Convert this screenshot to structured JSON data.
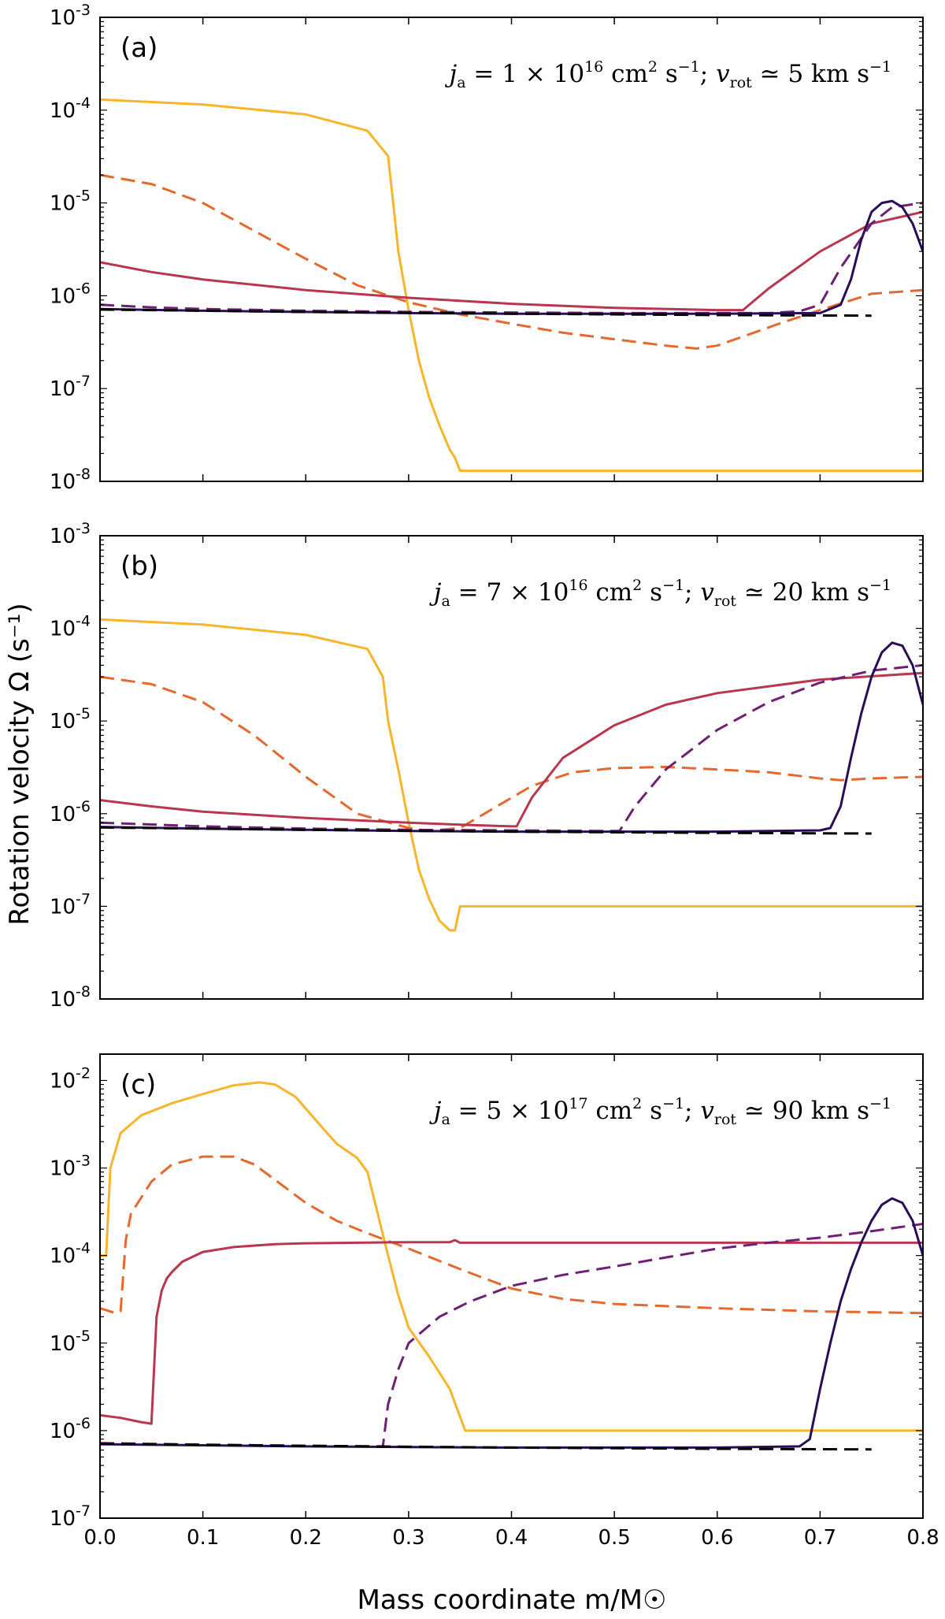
{
  "figure": {
    "ylabel": "Rotation velocity Ω (s⁻¹)",
    "xlabel": "Mass coordinate m/M☉"
  },
  "chart_data": [
    {
      "type": "line",
      "panel_label": "(a)",
      "annotation": "j_a = 1 × 10^16 cm^2 s^-1; v_rot ≃ 5 km s^-1",
      "annotation_parts": {
        "j": "1",
        "exp": "16",
        "v": "5"
      },
      "xlim": [
        0,
        0.8
      ],
      "ylim": [
        1e-08,
        0.001
      ],
      "yscale": "log",
      "x_ticks": [
        "0.0",
        "0.1",
        "0.2",
        "0.3",
        "0.4",
        "0.5",
        "0.6",
        "0.7",
        "0.8"
      ],
      "y_ticks": [
        {
          "base": "10",
          "exp": "-8"
        },
        {
          "base": "10",
          "exp": "-7"
        },
        {
          "base": "10",
          "exp": "-6"
        },
        {
          "base": "10",
          "exp": "-5"
        },
        {
          "base": "10",
          "exp": "-4"
        },
        {
          "base": "10",
          "exp": "-3"
        }
      ],
      "series": [
        {
          "color": "#f7b52c",
          "dash": "solid",
          "x": [
            0,
            0.1,
            0.2,
            0.26,
            0.28,
            0.285,
            0.29,
            0.3,
            0.31,
            0.32,
            0.33,
            0.34,
            0.345,
            0.35,
            0.8
          ],
          "y": [
            0.00013,
            0.000115,
            9e-05,
            6e-05,
            3.2e-05,
            1e-05,
            3e-06,
            7e-07,
            2e-07,
            8e-08,
            4e-08,
            2.2e-08,
            1.8e-08,
            1.3e-08,
            1.3e-08
          ]
        },
        {
          "color": "#e3692f",
          "dash": "dashed",
          "x": [
            0,
            0.05,
            0.1,
            0.15,
            0.2,
            0.25,
            0.3,
            0.35,
            0.4,
            0.45,
            0.5,
            0.55,
            0.58,
            0.6,
            0.63,
            0.66,
            0.7,
            0.75,
            0.8
          ],
          "y": [
            2e-05,
            1.6e-05,
            1e-05,
            5e-06,
            2.5e-06,
            1.3e-06,
            8.5e-07,
            6.3e-07,
            5e-07,
            4e-07,
            3.4e-07,
            2.9e-07,
            2.7e-07,
            2.9e-07,
            3.8e-07,
            5e-07,
            7e-07,
            1.05e-06,
            1.15e-06
          ]
        },
        {
          "color": "#b8364f",
          "dash": "solid",
          "x": [
            0,
            0.05,
            0.1,
            0.2,
            0.3,
            0.4,
            0.5,
            0.6,
            0.625,
            0.65,
            0.7,
            0.75,
            0.8
          ],
          "y": [
            2.3e-06,
            1.8e-06,
            1.5e-06,
            1.15e-06,
            9.5e-07,
            8.2e-07,
            7.4e-07,
            7e-07,
            7e-07,
            1.2e-06,
            3e-06,
            6e-06,
            8e-06
          ]
        },
        {
          "color": "#6e2174",
          "dash": "dashed",
          "x": [
            0,
            0.05,
            0.1,
            0.2,
            0.3,
            0.5,
            0.65,
            0.68,
            0.7,
            0.72,
            0.75,
            0.77,
            0.8
          ],
          "y": [
            8e-07,
            7.5e-07,
            7.2e-07,
            6.9e-07,
            6.7e-07,
            6.5e-07,
            6.5e-07,
            6.8e-07,
            8e-07,
            2e-06,
            6e-06,
            9e-06,
            1e-05
          ]
        },
        {
          "color": "#2a0d58",
          "dash": "solid",
          "x": [
            0,
            0.1,
            0.2,
            0.3,
            0.4,
            0.5,
            0.6,
            0.7,
            0.72,
            0.73,
            0.74,
            0.75,
            0.76,
            0.77,
            0.78,
            0.79,
            0.8
          ],
          "y": [
            7.2e-07,
            6.9e-07,
            6.7e-07,
            6.5e-07,
            6.4e-07,
            6.4e-07,
            6.4e-07,
            6.5e-07,
            8e-07,
            1.5e-06,
            4e-06,
            8e-06,
            1e-05,
            1.05e-05,
            9e-06,
            6e-06,
            3e-06
          ]
        },
        {
          "color": "#000000",
          "dash": "dashed",
          "x": [
            0,
            0.2,
            0.4,
            0.6,
            0.75
          ],
          "y": [
            7.1e-07,
            6.7e-07,
            6.4e-07,
            6.2e-07,
            6.1e-07
          ]
        }
      ]
    },
    {
      "type": "line",
      "panel_label": "(b)",
      "annotation": "j_a = 7 × 10^16 cm^2 s^-1; v_rot ≃ 20 km s^-1",
      "annotation_parts": {
        "j": "7",
        "exp": "16",
        "v": "20"
      },
      "xlim": [
        0,
        0.8
      ],
      "ylim": [
        1e-08,
        0.001
      ],
      "yscale": "log",
      "x_ticks": [
        "0.0",
        "0.1",
        "0.2",
        "0.3",
        "0.4",
        "0.5",
        "0.6",
        "0.7",
        "0.8"
      ],
      "y_ticks": [
        {
          "base": "10",
          "exp": "-8"
        },
        {
          "base": "10",
          "exp": "-7"
        },
        {
          "base": "10",
          "exp": "-6"
        },
        {
          "base": "10",
          "exp": "-5"
        },
        {
          "base": "10",
          "exp": "-4"
        },
        {
          "base": "10",
          "exp": "-3"
        }
      ],
      "series": [
        {
          "color": "#f7b52c",
          "dash": "solid",
          "x": [
            0,
            0.1,
            0.2,
            0.26,
            0.275,
            0.28,
            0.29,
            0.3,
            0.31,
            0.32,
            0.33,
            0.34,
            0.345,
            0.35,
            0.8
          ],
          "y": [
            0.000125,
            0.00011,
            8.5e-05,
            6e-05,
            3e-05,
            1e-05,
            3e-06,
            8e-07,
            2.5e-07,
            1.2e-07,
            7e-08,
            5.5e-08,
            5.5e-08,
            1e-07,
            1e-07
          ]
        },
        {
          "color": "#e3692f",
          "dash": "dashed",
          "x": [
            0,
            0.05,
            0.1,
            0.15,
            0.2,
            0.25,
            0.3,
            0.32,
            0.35,
            0.38,
            0.42,
            0.46,
            0.5,
            0.55,
            0.6,
            0.65,
            0.7,
            0.72,
            0.75,
            0.8
          ],
          "y": [
            3e-05,
            2.5e-05,
            1.6e-05,
            7e-06,
            2.5e-06,
            1e-06,
            7e-07,
            6.5e-07,
            7e-07,
            1.1e-06,
            2e-06,
            2.8e-06,
            3.1e-06,
            3.2e-06,
            3e-06,
            2.8e-06,
            2.4e-06,
            2.3e-06,
            2.4e-06,
            2.5e-06
          ]
        },
        {
          "color": "#b8364f",
          "dash": "solid",
          "x": [
            0,
            0.05,
            0.1,
            0.2,
            0.3,
            0.35,
            0.4,
            0.405,
            0.42,
            0.45,
            0.5,
            0.55,
            0.6,
            0.7,
            0.8
          ],
          "y": [
            1.4e-06,
            1.2e-06,
            1.05e-06,
            9e-07,
            8e-07,
            7.6e-07,
            7.3e-07,
            7.3e-07,
            1.5e-06,
            4e-06,
            9e-06,
            1.5e-05,
            2e-05,
            2.8e-05,
            3.3e-05
          ]
        },
        {
          "color": "#6e2174",
          "dash": "dashed",
          "x": [
            0,
            0.1,
            0.2,
            0.3,
            0.4,
            0.5,
            0.505,
            0.52,
            0.55,
            0.6,
            0.65,
            0.7,
            0.75,
            0.8
          ],
          "y": [
            8e-07,
            7.3e-07,
            6.9e-07,
            6.7e-07,
            6.6e-07,
            6.5e-07,
            6.5e-07,
            1.2e-06,
            3e-06,
            8e-06,
            1.6e-05,
            2.6e-05,
            3.5e-05,
            4e-05
          ]
        },
        {
          "color": "#2a0d58",
          "dash": "solid",
          "x": [
            0,
            0.1,
            0.2,
            0.3,
            0.4,
            0.5,
            0.6,
            0.7,
            0.71,
            0.72,
            0.73,
            0.74,
            0.75,
            0.76,
            0.77,
            0.78,
            0.79,
            0.8
          ],
          "y": [
            7.2e-07,
            6.9e-07,
            6.7e-07,
            6.5e-07,
            6.4e-07,
            6.4e-07,
            6.4e-07,
            6.6e-07,
            7e-07,
            1.2e-06,
            4e-06,
            1.2e-05,
            3e-05,
            5.5e-05,
            7e-05,
            6.5e-05,
            4e-05,
            1.5e-05
          ]
        },
        {
          "color": "#000000",
          "dash": "dashed",
          "x": [
            0,
            0.2,
            0.4,
            0.6,
            0.75
          ],
          "y": [
            7.1e-07,
            6.7e-07,
            6.4e-07,
            6.2e-07,
            6.1e-07
          ]
        }
      ]
    },
    {
      "type": "line",
      "panel_label": "(c)",
      "annotation": "j_a = 5 × 10^17 cm^2 s^-1; v_rot ≃ 90 km s^-1",
      "annotation_parts": {
        "j": "5",
        "exp": "17",
        "v": "90"
      },
      "xlim": [
        0,
        0.8
      ],
      "ylim": [
        1e-07,
        0.02
      ],
      "yscale": "log",
      "x_ticks": [
        "0.0",
        "0.1",
        "0.2",
        "0.3",
        "0.4",
        "0.5",
        "0.6",
        "0.7",
        "0.8"
      ],
      "y_ticks": [
        {
          "base": "10",
          "exp": "-7"
        },
        {
          "base": "10",
          "exp": "-6"
        },
        {
          "base": "10",
          "exp": "-5"
        },
        {
          "base": "10",
          "exp": "-4"
        },
        {
          "base": "10",
          "exp": "-3"
        },
        {
          "base": "10",
          "exp": "-2"
        }
      ],
      "series": [
        {
          "color": "#f7b52c",
          "dash": "solid",
          "x": [
            0,
            0.006,
            0.01,
            0.02,
            0.04,
            0.07,
            0.1,
            0.13,
            0.155,
            0.17,
            0.19,
            0.21,
            0.23,
            0.25,
            0.26,
            0.27,
            0.28,
            0.29,
            0.3,
            0.32,
            0.34,
            0.355,
            0.8
          ],
          "y": [
            0.0001,
            0.0001,
            0.001,
            0.0025,
            0.004,
            0.0055,
            0.007,
            0.0088,
            0.0095,
            0.009,
            0.0065,
            0.0035,
            0.0019,
            0.0013,
            0.0009,
            0.0003,
            0.0001,
            3.5e-05,
            1.5e-05,
            7e-06,
            3e-06,
            1e-06,
            1e-06
          ]
        },
        {
          "color": "#e3692f",
          "dash": "dashed",
          "x": [
            0,
            0.015,
            0.02,
            0.025,
            0.03,
            0.05,
            0.07,
            0.1,
            0.13,
            0.15,
            0.18,
            0.2,
            0.23,
            0.26,
            0.3,
            0.35,
            0.4,
            0.45,
            0.5,
            0.6,
            0.7,
            0.8
          ],
          "y": [
            2.5e-05,
            2.2e-05,
            2.3e-05,
            0.00015,
            0.0003,
            0.0007,
            0.0011,
            0.00135,
            0.00135,
            0.0011,
            0.0006,
            0.0004,
            0.00025,
            0.00018,
            0.00012,
            7e-05,
            4.2e-05,
            3.2e-05,
            2.8e-05,
            2.5e-05,
            2.3e-05,
            2.2e-05
          ]
        },
        {
          "color": "#b8364f",
          "dash": "solid",
          "x": [
            0,
            0.02,
            0.04,
            0.05,
            0.055,
            0.06,
            0.065,
            0.07,
            0.08,
            0.1,
            0.13,
            0.17,
            0.2,
            0.25,
            0.3,
            0.34,
            0.345,
            0.35,
            0.4,
            0.5,
            0.6,
            0.7,
            0.8
          ],
          "y": [
            1.5e-06,
            1.4e-06,
            1.25e-06,
            1.2e-06,
            2e-05,
            4e-05,
            5.5e-05,
            6.5e-05,
            8.5e-05,
            0.00011,
            0.000125,
            0.000135,
            0.000138,
            0.00014,
            0.000142,
            0.000142,
            0.00015,
            0.00014,
            0.00014,
            0.00014,
            0.00014,
            0.00014,
            0.00014
          ]
        },
        {
          "color": "#6e2174",
          "dash": "dashed",
          "x": [
            0,
            0.1,
            0.2,
            0.27,
            0.275,
            0.28,
            0.29,
            0.3,
            0.33,
            0.36,
            0.4,
            0.45,
            0.5,
            0.55,
            0.6,
            0.65,
            0.7,
            0.75,
            0.8
          ],
          "y": [
            7.2e-07,
            6.9e-07,
            6.7e-07,
            6.6e-07,
            6.6e-07,
            2e-06,
            5e-06,
            1e-05,
            2e-05,
            3e-05,
            4.5e-05,
            6e-05,
            7.5e-05,
            9.5e-05,
            0.00012,
            0.00014,
            0.00016,
            0.00019,
            0.00023
          ]
        },
        {
          "color": "#2a0d58",
          "dash": "solid",
          "x": [
            0,
            0.1,
            0.2,
            0.3,
            0.4,
            0.5,
            0.6,
            0.68,
            0.69,
            0.7,
            0.71,
            0.72,
            0.73,
            0.74,
            0.75,
            0.76,
            0.77,
            0.78,
            0.79,
            0.8
          ],
          "y": [
            7e-07,
            6.8e-07,
            6.6e-07,
            6.5e-07,
            6.4e-07,
            6.4e-07,
            6.4e-07,
            6.6e-07,
            8e-07,
            3e-06,
            1e-05,
            3e-05,
            7e-05,
            0.00014,
            0.00025,
            0.00038,
            0.00045,
            0.0004,
            0.00025,
            0.0001
          ]
        },
        {
          "color": "#000000",
          "dash": "dashed",
          "x": [
            0,
            0.2,
            0.4,
            0.6,
            0.75
          ],
          "y": [
            7.1e-07,
            6.7e-07,
            6.4e-07,
            6.2e-07,
            6.1e-07
          ]
        }
      ]
    }
  ]
}
